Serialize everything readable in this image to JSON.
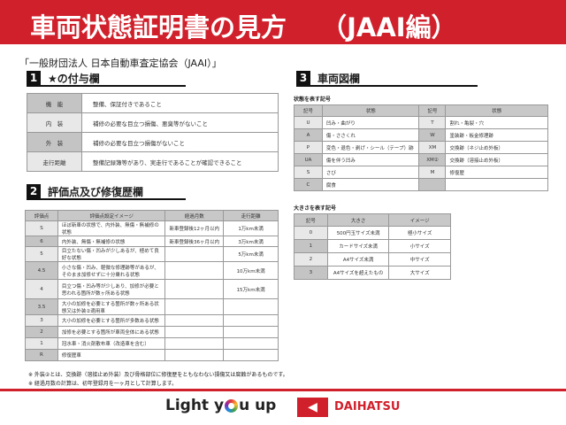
{
  "header": {
    "title": "車両状態証明書の見方　 （JAAI編）"
  },
  "subtitle": "「一般財団法人 日本自動車査定協会（JAAI）」",
  "section1": {
    "num": "1",
    "title": "★の付与欄",
    "rows": [
      {
        "label": "機　能",
        "text": "整備、保証付きであること"
      },
      {
        "label": "内　装",
        "text": "補修の必要な目立つ損傷、悪臭等がないこと"
      },
      {
        "label": "外　装",
        "text": "補修の必要な目立つ損傷がないこと"
      },
      {
        "label": "走行距離",
        "text": "整備記録簿等があり、実走行であることが確認できること"
      }
    ]
  },
  "section2": {
    "num": "2",
    "title": "評価点及び修復歴欄",
    "headers": [
      "評価点",
      "評価点設定イメージ",
      "経過月数",
      "走行距離"
    ],
    "rows": [
      [
        "S",
        "ほぼ新車の状態で、内外装、無傷・無補修の状態",
        "新車登録後12ヶ月以内",
        "1万km未満"
      ],
      [
        "6",
        "内外装、無傷・無補修の状態",
        "新車登録後36ヶ月以内",
        "3万km未満"
      ],
      [
        "5",
        "目立たない傷・凹みが少しあるが、極めて良好な状態",
        "",
        "5万km未満"
      ],
      [
        "4.5",
        "小さな傷・凹み、軽微な修理跡等があるが、そのまま加修せずに十分乗れる状態",
        "",
        "10万km未満"
      ],
      [
        "4",
        "目立つ傷・凹み等が少しあり、加修が必要と思われる箇所が数ヶ所ある状態",
        "",
        "15万km未満"
      ],
      [
        "3.5",
        "大小の加修を必要とする箇所が数ヶ所ある状態又は外装②適用車",
        "",
        ""
      ],
      [
        "3",
        "大小の加修を必要とする箇所が多数ある状態",
        "",
        ""
      ],
      [
        "2",
        "加修を必要とする箇所が車両全体にある状態",
        "",
        ""
      ],
      [
        "1",
        "冠水車・消火剤散布車（改造車を含む）",
        "",
        ""
      ],
      [
        "R",
        "修復歴車",
        "",
        ""
      ]
    ]
  },
  "notes": [
    "※ 外装②とは、交換跡（溶接止め外装）及び骨格部位に修復歴をともなわない損傷又は腐蝕があるものです。",
    "※ 経過月数の計算は、初年登録月を一ヶ月として計算します。"
  ],
  "section3": {
    "num": "3",
    "title": "車両図欄",
    "state_label": "状態を表す記号",
    "state_headers": [
      "記号",
      "状態",
      "記号",
      "状態"
    ],
    "state_rows": [
      [
        "U",
        "凹み・曲がり",
        "T",
        "割れ・亀裂・穴"
      ],
      [
        "A",
        "傷・ささくれ",
        "W",
        "塗装跡・板金修理跡"
      ],
      [
        "P",
        "変色・退色・剥げ・シール（テープ）跡",
        "XM",
        "交換跡（ネジ止め外板）"
      ],
      [
        "UA",
        "傷を伴う凹み",
        "XM②",
        "交換跡（溶接止め外板）"
      ],
      [
        "S",
        "さび",
        "M",
        "修復歴"
      ],
      [
        "C",
        "腐食",
        "",
        ""
      ]
    ],
    "size_label": "大きさを表す記号",
    "size_headers": [
      "記号",
      "大きさ",
      "イメージ"
    ],
    "size_rows": [
      [
        "0",
        "500円玉サイズ未満",
        "極小サイズ"
      ],
      [
        "1",
        "カードサイズ未満",
        "小サイズ"
      ],
      [
        "2",
        "A4サイズ未満",
        "中サイズ"
      ],
      [
        "3",
        "A4サイズを超えたもの",
        "大サイズ"
      ]
    ]
  },
  "footer": {
    "slogan_pre": "Light y",
    "slogan_post": "u up",
    "brand": "DAIHATSU"
  },
  "colors": {
    "brand_red": "#d0202b"
  }
}
